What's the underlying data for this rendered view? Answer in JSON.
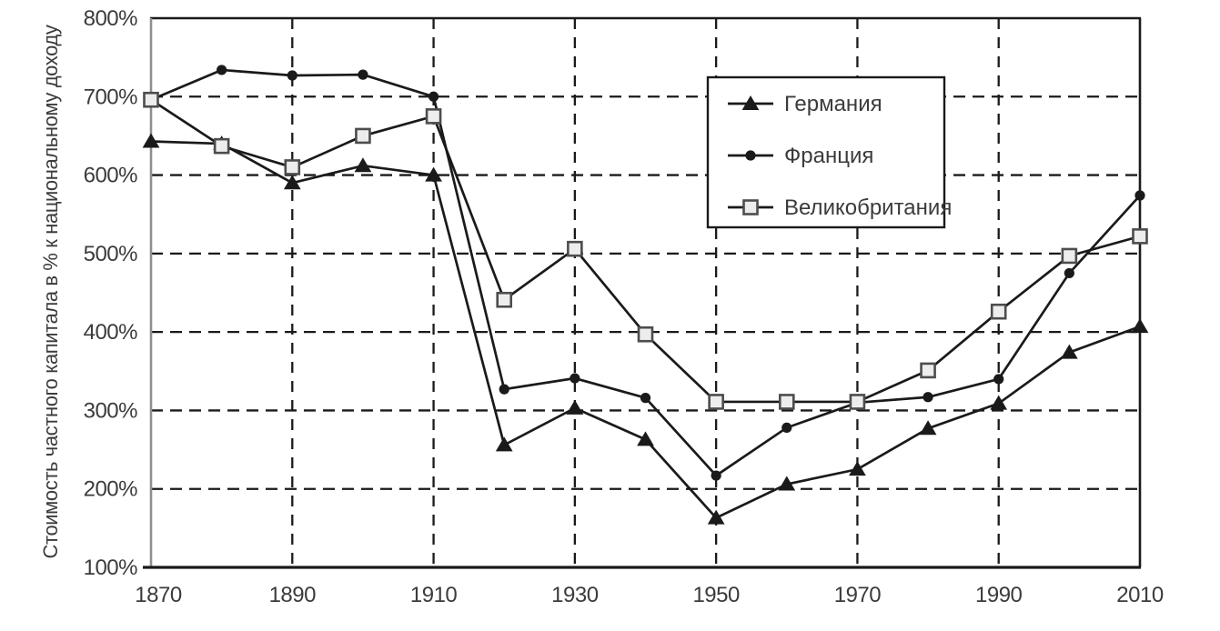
{
  "chart_data": {
    "type": "line",
    "title": "",
    "xlabel": "",
    "ylabel": "Стоимость частного капитала в % к национальному доходу",
    "xlim": [
      1870,
      2010
    ],
    "ylim": [
      100,
      800
    ],
    "grid": "dashed-both-axes",
    "legend": {
      "position": "inside-top-right",
      "bordered": true
    },
    "x": [
      1870,
      1880,
      1890,
      1900,
      1910,
      1920,
      1930,
      1940,
      1950,
      1960,
      1970,
      1980,
      1990,
      2000,
      2010
    ],
    "x_ticks": [
      1870,
      1890,
      1910,
      1930,
      1950,
      1970,
      1990,
      2010
    ],
    "x_tick_labels": [
      "1870",
      "1890",
      "1910",
      "1930",
      "1950",
      "1970",
      "1990",
      "2010"
    ],
    "y_ticks": [
      100,
      200,
      300,
      400,
      500,
      600,
      700,
      800
    ],
    "y_tick_labels": [
      "100%",
      "200%",
      "300%",
      "400%",
      "500%",
      "600%",
      "700%",
      "800%"
    ],
    "series": [
      {
        "id": "germany",
        "name": "Германия",
        "marker": "triangle-filled",
        "values": [
          643,
          640,
          590,
          612,
          600,
          256,
          303,
          263,
          163,
          206,
          225,
          277,
          309,
          374,
          407
        ]
      },
      {
        "id": "france",
        "name": "Франция",
        "marker": "circle-filled",
        "values": [
          696,
          734,
          727,
          728,
          700,
          327,
          341,
          316,
          217,
          278,
          310,
          317,
          340,
          475,
          574
        ]
      },
      {
        "id": "uk",
        "name": "Великобритания",
        "marker": "square-open",
        "values": [
          696,
          637,
          610,
          650,
          675,
          441,
          506,
          397,
          311,
          311,
          311,
          351,
          426,
          497,
          522
        ]
      }
    ],
    "colors": {
      "line": "#1a1a1a",
      "text": "#3b3b3b",
      "axis_left": "#8f8f8f",
      "square_fill": "#ededed",
      "square_stroke": "#4d4d4d",
      "background": "#ffffff"
    }
  }
}
